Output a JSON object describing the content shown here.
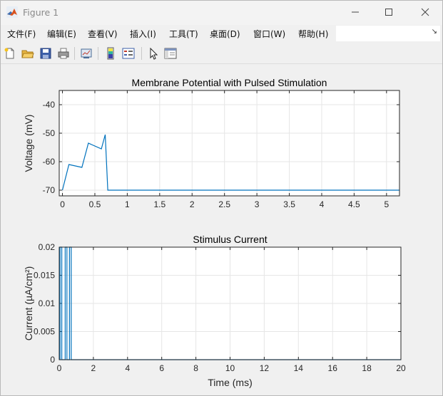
{
  "window": {
    "title": "Figure 1"
  },
  "menu": {
    "items": [
      "文件(F)",
      "编辑(E)",
      "查看(V)",
      "插入(I)",
      "工具(T)",
      "桌面(D)",
      "窗口(W)",
      "帮助(H)"
    ]
  },
  "toolbar": {
    "buttons": [
      "new-figure-icon",
      "open-file-icon",
      "save-icon",
      "print-icon",
      "link-plot-icon",
      "colorbar-icon",
      "legend-icon",
      "pointer-icon",
      "property-inspector-icon"
    ]
  },
  "chart_data": [
    {
      "type": "line",
      "title": "Membrane Potential with Pulsed Stimulation",
      "xlabel": "",
      "ylabel": "Voltage (mV)",
      "xlim": [
        -0.05,
        5.2
      ],
      "ylim": [
        -72,
        -35
      ],
      "xticks": [
        "0",
        "0.5",
        "1",
        "1.5",
        "2",
        "2.5",
        "3",
        "3.5",
        "4",
        "4.5",
        "5"
      ],
      "yticks": [
        "-40",
        "-50",
        "-60",
        "-70"
      ],
      "grid": true,
      "color": "#0072bd",
      "x": [
        0,
        0.1,
        0.3,
        0.4,
        0.6,
        0.66,
        0.7,
        5.2
      ],
      "y": [
        -70,
        -61,
        -62,
        -53.5,
        -55.5,
        -50.5,
        -70,
        -70
      ]
    },
    {
      "type": "line",
      "title": "Stimulus Current",
      "xlabel": "Time (ms)",
      "ylabel": "Current (µA/cm²)",
      "xlim": [
        0,
        20
      ],
      "ylim": [
        0,
        0.02
      ],
      "xticks": [
        "0",
        "2",
        "4",
        "6",
        "8",
        "10",
        "12",
        "14",
        "16",
        "18",
        "20"
      ],
      "yticks": [
        "0.02",
        "0.015",
        "0.01",
        "0.005",
        "0"
      ],
      "grid": true,
      "color": "#0072bd",
      "x": [
        0,
        0.05,
        0.05,
        0.15,
        0.15,
        0.35,
        0.35,
        0.45,
        0.45,
        0.6,
        0.6,
        0.7,
        0.7,
        20
      ],
      "y": [
        0,
        0,
        0.02,
        0.02,
        0,
        0,
        0.02,
        0.02,
        0,
        0,
        0.02,
        0.02,
        0,
        0
      ]
    }
  ]
}
